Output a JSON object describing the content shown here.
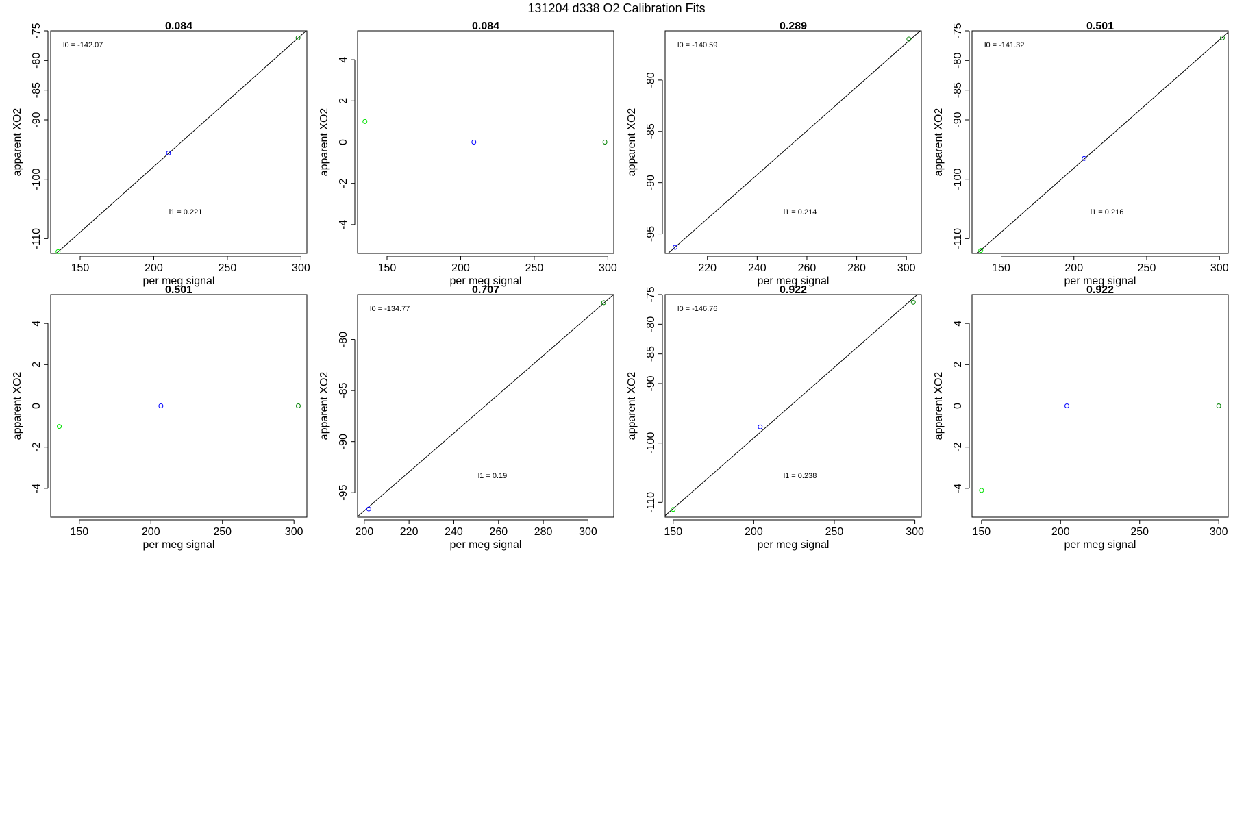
{
  "figure": {
    "title": "131204   d338   O2 Calibration Fits"
  },
  "chart_data": [
    {
      "type": "scatter",
      "title": "0.084",
      "xlabel": "per meg signal",
      "ylabel": "apparent XO2",
      "xlim": [
        130,
        304
      ],
      "ylim": [
        -112.5,
        -75
      ],
      "xticks": [
        150,
        200,
        250,
        300
      ],
      "yticks": [
        -110,
        -100,
        -90,
        -85,
        -80,
        -75
      ],
      "fit": {
        "type": "line",
        "slope": 0.221,
        "intercept": -142.07
      },
      "annotations": [
        {
          "text": "l0 =  -142.07",
          "pos": "top-left"
        },
        {
          "text": "l1 =  0.221",
          "pos": "lower-center"
        }
      ],
      "points": [
        {
          "x": 135,
          "y": -112.2,
          "color": "#00e000"
        },
        {
          "x": 210,
          "y": -95.6,
          "color": "#0000ff"
        },
        {
          "x": 298,
          "y": -76.2,
          "color": "#008000"
        }
      ]
    },
    {
      "type": "scatter",
      "title": "0.084",
      "xlabel": "per meg signal",
      "ylabel": "apparent XO2",
      "xlim": [
        130,
        304
      ],
      "ylim": [
        -5.4,
        5.4
      ],
      "xticks": [
        150,
        200,
        250,
        300
      ],
      "yticks": [
        -4,
        -2,
        0,
        2,
        4
      ],
      "fit": {
        "type": "line",
        "slope": 0,
        "intercept": 0
      },
      "annotations": [],
      "points": [
        {
          "x": 135,
          "y": 1.0,
          "color": "#00e000"
        },
        {
          "x": 209,
          "y": 0,
          "color": "#0000ff"
        },
        {
          "x": 298,
          "y": 0,
          "color": "#008000"
        }
      ]
    },
    {
      "type": "scatter",
      "title": "0.289",
      "xlabel": "per meg signal",
      "ylabel": "apparent XO2",
      "xlim": [
        203,
        306
      ],
      "ylim": [
        -96.9,
        -75.2
      ],
      "xticks": [
        220,
        240,
        260,
        280,
        300
      ],
      "yticks": [
        -95,
        -90,
        -85,
        -80
      ],
      "fit": {
        "type": "line",
        "slope": 0.214,
        "intercept": -140.59
      },
      "annotations": [
        {
          "text": "l0 =  -140.59",
          "pos": "top-left"
        },
        {
          "text": "l1 =  0.214",
          "pos": "lower-center"
        }
      ],
      "points": [
        {
          "x": 207,
          "y": -96.3,
          "color": "#0000ff"
        },
        {
          "x": 301,
          "y": -76.0,
          "color": "#008000"
        }
      ]
    },
    {
      "type": "scatter",
      "title": "0.501",
      "xlabel": "per meg signal",
      "ylabel": "apparent XO2",
      "xlim": [
        130,
        306
      ],
      "ylim": [
        -112.5,
        -75
      ],
      "xticks": [
        150,
        200,
        250,
        300
      ],
      "yticks": [
        -110,
        -100,
        -90,
        -85,
        -80,
        -75
      ],
      "fit": {
        "type": "line",
        "slope": 0.216,
        "intercept": -141.32
      },
      "annotations": [
        {
          "text": "l0 =  -141.32",
          "pos": "top-left"
        },
        {
          "text": "l1 =  0.216",
          "pos": "lower-center"
        }
      ],
      "points": [
        {
          "x": 136,
          "y": -112.0,
          "color": "#00e000"
        },
        {
          "x": 207,
          "y": -96.5,
          "color": "#0000ff"
        },
        {
          "x": 302,
          "y": -76.2,
          "color": "#008000"
        }
      ]
    },
    {
      "type": "scatter",
      "title": "0.501",
      "xlabel": "per meg signal",
      "ylabel": "apparent XO2",
      "xlim": [
        130,
        309
      ],
      "ylim": [
        -5.4,
        5.4
      ],
      "xticks": [
        150,
        200,
        250,
        300
      ],
      "yticks": [
        -4,
        -2,
        0,
        2,
        4
      ],
      "fit": {
        "type": "line",
        "slope": 0,
        "intercept": 0
      },
      "annotations": [],
      "points": [
        {
          "x": 136,
          "y": -1.0,
          "color": "#00e000"
        },
        {
          "x": 207,
          "y": 0,
          "color": "#0000ff"
        },
        {
          "x": 303,
          "y": 0,
          "color": "#008000"
        }
      ]
    },
    {
      "type": "scatter",
      "title": "0.707",
      "xlabel": "per meg signal",
      "ylabel": "apparent XO2",
      "xlim": [
        197,
        311.5
      ],
      "ylim": [
        -97.4,
        -75.6
      ],
      "xticks": [
        200,
        220,
        240,
        260,
        280,
        300
      ],
      "yticks": [
        -95,
        -90,
        -85,
        -80
      ],
      "fit": {
        "type": "line",
        "slope": 0.19,
        "intercept": -134.77
      },
      "annotations": [
        {
          "text": "l0 =  -134.77",
          "pos": "top-left"
        },
        {
          "text": "l1 =  0.19",
          "pos": "lower-center"
        }
      ],
      "points": [
        {
          "x": 202,
          "y": -96.6,
          "color": "#0000ff"
        },
        {
          "x": 307,
          "y": -76.4,
          "color": "#008000"
        }
      ]
    },
    {
      "type": "scatter",
      "title": "0.922",
      "xlabel": "per meg signal",
      "ylabel": "apparent XO2",
      "xlim": [
        145,
        304
      ],
      "ylim": [
        -112.5,
        -75
      ],
      "xticks": [
        150,
        200,
        250,
        300
      ],
      "yticks": [
        -110,
        -100,
        -90,
        -85,
        -80,
        -75
      ],
      "fit": {
        "type": "line",
        "slope": 0.238,
        "intercept": -146.76
      },
      "annotations": [
        {
          "text": "l0 =  -146.76",
          "pos": "top-left"
        },
        {
          "text": "l1 =  0.238",
          "pos": "lower-center"
        }
      ],
      "points": [
        {
          "x": 150,
          "y": -111.2,
          "color": "#00e000"
        },
        {
          "x": 204,
          "y": -97.3,
          "color": "#0000ff"
        },
        {
          "x": 299,
          "y": -76.3,
          "color": "#008000"
        }
      ]
    },
    {
      "type": "scatter",
      "title": "0.922",
      "xlabel": "per meg signal",
      "ylabel": "apparent XO2",
      "xlim": [
        144,
        306
      ],
      "ylim": [
        -5.4,
        5.4
      ],
      "xticks": [
        150,
        200,
        250,
        300
      ],
      "yticks": [
        -4,
        -2,
        0,
        2,
        4
      ],
      "fit": {
        "type": "line",
        "slope": 0,
        "intercept": 0
      },
      "annotations": [],
      "points": [
        {
          "x": 150,
          "y": -4.1,
          "color": "#00e000"
        },
        {
          "x": 204,
          "y": 0,
          "color": "#0000ff"
        },
        {
          "x": 300,
          "y": 0,
          "color": "#008000"
        }
      ]
    }
  ]
}
